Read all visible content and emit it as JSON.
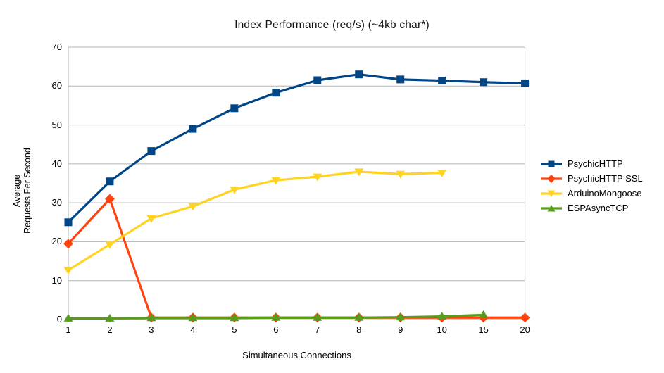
{
  "title": "Index Performance (req/s) (~4kb char*)",
  "chart_data": {
    "type": "line",
    "title": "Index Performance (req/s) (~4kb char*)",
    "xlabel": "Simultaneous Connections",
    "ylabel": "Average Requests Per Second",
    "ylabel_lines": [
      "Average",
      "Requests Per Second"
    ],
    "categories": [
      "1",
      "2",
      "3",
      "4",
      "5",
      "6",
      "7",
      "8",
      "9",
      "10",
      "15",
      "20"
    ],
    "ylim": [
      0,
      70
    ],
    "ytick_step": 10,
    "yticks": [
      "0",
      "10",
      "20",
      "30",
      "40",
      "50",
      "60",
      "70"
    ],
    "grid": "horizontal",
    "legend_position": "right",
    "series": [
      {
        "name": "PsychicHTTP",
        "color": "#004586",
        "marker": "square",
        "values": [
          25,
          35.5,
          43.3,
          49,
          54.3,
          58.3,
          61.5,
          63,
          61.7,
          61.4,
          61,
          60.7
        ]
      },
      {
        "name": "PsychicHTTP SSL",
        "color": "#FF420E",
        "marker": "diamond",
        "values": [
          19.5,
          31,
          0.5,
          0.5,
          0.5,
          0.5,
          0.5,
          0.5,
          0.5,
          0.5,
          0.5,
          0.5
        ]
      },
      {
        "name": "ArduinoMongoose",
        "color": "#FFD320",
        "marker": "triangle-down",
        "values": [
          12.7,
          19.3,
          26,
          29.1,
          33.4,
          35.8,
          36.7,
          38,
          37.4,
          37.7,
          null,
          null
        ]
      },
      {
        "name": "ESPAsyncTCP",
        "color": "#579D1C",
        "marker": "triangle-up",
        "values": [
          0.3,
          0.3,
          0.4,
          0.4,
          0.4,
          0.5,
          0.5,
          0.5,
          0.6,
          0.8,
          1.2,
          null
        ]
      }
    ]
  },
  "colors": {
    "grid": "#B3B3B3",
    "axis": "#B3B3B3",
    "text": "#000000",
    "background": "#FFFFFF"
  }
}
